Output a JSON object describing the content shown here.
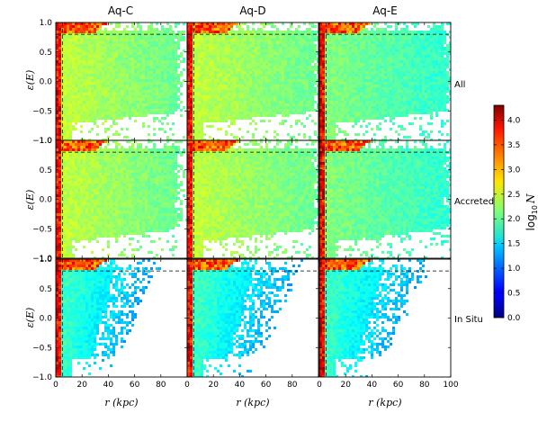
{
  "chart_data": {
    "type": "heatmap",
    "layout": "3x3 grid of density maps",
    "column_titles": [
      "Aq-C",
      "Aq-D",
      "Aq-E"
    ],
    "row_labels": [
      "All",
      "Accreted",
      "In Situ"
    ],
    "xlabel": "r (kpc)",
    "ylabel": "ε(E)",
    "xlim": [
      0,
      100
    ],
    "ylim": [
      -1.0,
      1.0
    ],
    "xticks": [
      0,
      20,
      40,
      60,
      80,
      100
    ],
    "xtick_labels": [
      "0",
      "20",
      "40",
      "60",
      "80",
      "100"
    ],
    "yticks": [
      1.0,
      0.5,
      0.0,
      -0.5,
      -1.0
    ],
    "ytick_labels": [
      "1.0",
      "0.5",
      "0.0",
      "−0.5",
      "−1.0"
    ],
    "dashed_guides": {
      "r_kpc": 5,
      "epsilon": 0.8
    },
    "colorbar": {
      "label": "log10 N",
      "range": [
        0.0,
        4.3
      ],
      "ticks": [
        0.0,
        0.5,
        1.0,
        1.5,
        2.0,
        2.5,
        3.0,
        3.5,
        4.0
      ],
      "tick_labels": [
        "0.0",
        "0.5",
        "1.0",
        "1.5",
        "2.0",
        "2.5",
        "3.0",
        "3.5",
        "4.0"
      ],
      "colormap": "jet"
    },
    "panels": [
      {
        "column": "Aq-C",
        "row": "All",
        "populated_r_max": 95,
        "density": "high"
      },
      {
        "column": "Aq-D",
        "row": "All",
        "populated_r_max": 100,
        "density": "high"
      },
      {
        "column": "Aq-E",
        "row": "All",
        "populated_r_max": 100,
        "density": "medium"
      },
      {
        "column": "Aq-C",
        "row": "Accreted",
        "populated_r_max": 95,
        "density": "high"
      },
      {
        "column": "Aq-D",
        "row": "Accreted",
        "populated_r_max": 100,
        "density": "high"
      },
      {
        "column": "Aq-E",
        "row": "Accreted",
        "populated_r_max": 100,
        "density": "medium"
      },
      {
        "column": "Aq-C",
        "row": "In Situ",
        "populated_r_max": 70,
        "density": "low"
      },
      {
        "column": "Aq-D",
        "row": "In Situ",
        "populated_r_max": 80,
        "density": "low"
      },
      {
        "column": "Aq-E",
        "row": "In Situ",
        "populated_r_max": 75,
        "density": "low"
      }
    ]
  }
}
